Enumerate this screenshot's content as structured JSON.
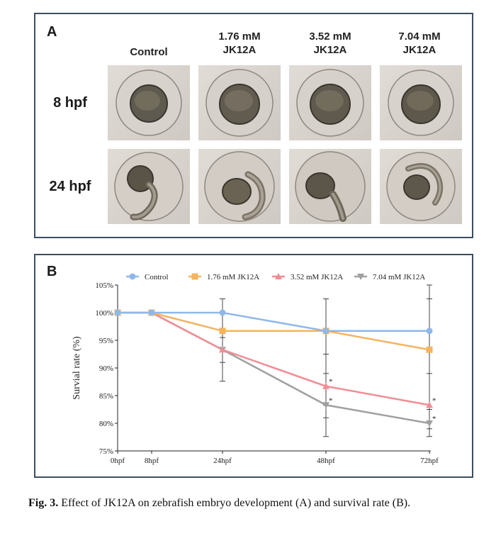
{
  "panel_a": {
    "letter": "A",
    "columns": [
      {
        "line1": "Control",
        "line2": ""
      },
      {
        "line1": "1.76 mM",
        "line2": "JK12A"
      },
      {
        "line1": "3.52 mM",
        "line2": "JK12A"
      },
      {
        "line1": "7.04 mM",
        "line2": "JK12A"
      }
    ],
    "rows": [
      "8 hpf",
      "24 hpf"
    ]
  },
  "panel_b": {
    "letter": "B"
  },
  "chart_data": {
    "type": "line",
    "x": [
      "0hpf",
      "8hpf",
      "24hpf",
      "48hpf",
      "72hpf"
    ],
    "ylabel": "Survial rate (%)",
    "ylim": [
      75,
      105
    ],
    "yticks": [
      "75%",
      "80%",
      "85%",
      "90%",
      "95%",
      "100%",
      "105%"
    ],
    "legend_position": "top",
    "series": [
      {
        "name": "Control",
        "color": "#8fb8ea",
        "marker": "circle",
        "values": [
          100,
          100,
          100,
          96.7,
          96.7
        ],
        "errors": [
          0,
          0,
          0,
          0,
          0
        ],
        "sig": [
          "",
          "",
          "",
          "",
          ""
        ]
      },
      {
        "name": "1.76 mM JK12A",
        "color": "#f4b45f",
        "marker": "square",
        "values": [
          100,
          100,
          96.7,
          96.7,
          93.3
        ],
        "errors": [
          0,
          0,
          0,
          5.8,
          0
        ],
        "sig": [
          "",
          "",
          "",
          "",
          ""
        ]
      },
      {
        "name": "3.52 mM JK12A",
        "color": "#f08d94",
        "marker": "triangle-up",
        "values": [
          100,
          100,
          93.3,
          86.7,
          83.3
        ],
        "errors": [
          0,
          0,
          0,
          0,
          0
        ],
        "sig": [
          "",
          "",
          "",
          "*",
          "*"
        ]
      },
      {
        "name": "7.04 mM JK12A",
        "color": "#a0a0a0",
        "marker": "triangle-down",
        "values": [
          100,
          100,
          93.3,
          83.3,
          80.0
        ],
        "errors": [
          0,
          0,
          5.8,
          5.8,
          0
        ],
        "sig": [
          "",
          "",
          "",
          "*",
          "*"
        ]
      }
    ],
    "error_bars": [
      {
        "x": "24hpf",
        "lo": 87.6,
        "hi": 102.5
      },
      {
        "x": "24hpf",
        "lo": 91.0,
        "hi": 95.5
      },
      {
        "x": "48hpf",
        "lo": 77.6,
        "hi": 102.5
      },
      {
        "x": "48hpf",
        "lo": 81.0,
        "hi": 92.5
      },
      {
        "x": "48hpf",
        "lo": 83.3,
        "hi": 89.0
      },
      {
        "x": "72hpf",
        "lo": 77.6,
        "hi": 105.0
      },
      {
        "x": "72hpf",
        "lo": 89.0,
        "hi": 102.5
      },
      {
        "x": "72hpf",
        "lo": 79.0,
        "hi": 82.5
      }
    ]
  },
  "caption": {
    "label": "Fig. 3.",
    "text": " Effect of JK12A on zebrafish embryo development (A) and survival rate (B)."
  }
}
